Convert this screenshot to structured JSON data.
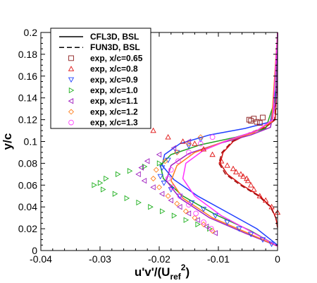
{
  "chart_data": {
    "type": "line",
    "title": "",
    "xlabel": "u'v'/(U",
    "xlabel_sub": "ref",
    "xlabel_sup": "2",
    "xlabel_close": ")",
    "ylabel": "y/c",
    "xlim": [
      -0.04,
      0
    ],
    "ylim": [
      0,
      0.2
    ],
    "x_ticks": [
      -0.04,
      -0.03,
      -0.02,
      -0.01,
      0
    ],
    "x_tick_labels": [
      "-0.04",
      "-0.03",
      "-0.02",
      "-0.01",
      "0"
    ],
    "y_ticks": [
      0,
      0.02,
      0.04,
      0.06,
      0.08,
      0.1,
      0.12,
      0.14,
      0.16,
      0.18,
      0.2
    ],
    "y_tick_labels": [
      "0",
      "0.02",
      "0.04",
      "0.06",
      "0.08",
      "0.1",
      "0.12",
      "0.14",
      "0.16",
      "0.18",
      "0.2"
    ],
    "grid": false,
    "legend_position": "top-left",
    "legend": [
      {
        "label": "CFL3D, BSL",
        "kind": "line",
        "dash": "solid",
        "color": "#000000"
      },
      {
        "label": "FUN3D, BSL",
        "kind": "line",
        "dash": "dashed",
        "color": "#000000"
      },
      {
        "label": "exp, x/c=0.65",
        "kind": "marker",
        "marker": "square",
        "color": "#8a1a1a"
      },
      {
        "label": "exp, x/c=0.8",
        "kind": "marker",
        "marker": "triangle-up",
        "color": "#e01010"
      },
      {
        "label": "exp, x/c=0.9",
        "kind": "marker",
        "marker": "triangle-down",
        "color": "#2040ff"
      },
      {
        "label": "exp, x/c=1.0",
        "kind": "marker",
        "marker": "triangle-right",
        "color": "#20b020"
      },
      {
        "label": "exp, x/c=1.1",
        "kind": "marker",
        "marker": "triangle-left",
        "color": "#a020c0"
      },
      {
        "label": "exp, x/c=1.2",
        "kind": "marker",
        "marker": "diamond",
        "color": "#ff8020"
      },
      {
        "label": "exp, x/c=1.3",
        "kind": "marker",
        "marker": "circle",
        "color": "#ff40ff"
      }
    ],
    "curves": [
      {
        "station": "0.8",
        "color": "#d01010",
        "dash": "solid",
        "x": [
          0,
          -0.0003,
          -0.0011,
          -0.003,
          -0.006,
          -0.0085,
          -0.0097,
          -0.0092,
          -0.0075,
          -0.0045,
          -0.002,
          -0.0004,
          -0.0001,
          0
        ],
        "y": [
          0.022,
          0.03,
          0.04,
          0.05,
          0.06,
          0.07,
          0.08,
          0.09,
          0.1,
          0.108,
          0.113,
          0.12,
          0.15,
          0.2
        ]
      },
      {
        "station": "0.8",
        "color": "#a01010",
        "dash": "dashed",
        "x": [
          0,
          -0.0003,
          -0.0012,
          -0.0032,
          -0.0063,
          -0.0088,
          -0.0099,
          -0.0094,
          -0.0077,
          -0.0047,
          -0.0021,
          -0.0005,
          -0.0001,
          0
        ],
        "y": [
          0.021,
          0.03,
          0.04,
          0.05,
          0.06,
          0.07,
          0.08,
          0.09,
          0.1,
          0.108,
          0.113,
          0.12,
          0.15,
          0.2
        ]
      },
      {
        "station": "0.9",
        "color": "#2040ff",
        "dash": "solid",
        "x": [
          0,
          -0.0035,
          -0.0085,
          -0.0135,
          -0.0175,
          -0.0195,
          -0.0191,
          -0.0165,
          -0.0115,
          -0.0055,
          -0.0012,
          -0.0002,
          0
        ],
        "y": [
          0.005,
          0.02,
          0.035,
          0.05,
          0.065,
          0.078,
          0.088,
          0.098,
          0.106,
          0.112,
          0.118,
          0.15,
          0.2
        ]
      },
      {
        "station": "1.0",
        "color": "#20a020",
        "dash": "solid",
        "x": [
          0,
          -0.0045,
          -0.0105,
          -0.016,
          -0.0193,
          -0.0198,
          -0.018,
          -0.013,
          -0.007,
          -0.002,
          -0.0003,
          0
        ],
        "y": [
          0.004,
          0.018,
          0.033,
          0.05,
          0.066,
          0.078,
          0.088,
          0.097,
          0.104,
          0.112,
          0.14,
          0.2
        ]
      },
      {
        "station": "1.1",
        "color": "#a020c0",
        "dash": "solid",
        "x": [
          0,
          -0.0055,
          -0.0115,
          -0.0165,
          -0.0188,
          -0.018,
          -0.015,
          -0.01,
          -0.0045,
          -0.0012,
          -0.0002,
          0
        ],
        "y": [
          0.004,
          0.016,
          0.03,
          0.048,
          0.064,
          0.078,
          0.089,
          0.098,
          0.106,
          0.113,
          0.14,
          0.2
        ]
      },
      {
        "station": "1.2",
        "color": "#ff8020",
        "dash": "solid",
        "x": [
          0,
          -0.005,
          -0.011,
          -0.016,
          -0.018,
          -0.017,
          -0.014,
          -0.009,
          -0.004,
          -0.001,
          0
        ],
        "y": [
          0.004,
          0.016,
          0.03,
          0.048,
          0.064,
          0.078,
          0.09,
          0.1,
          0.108,
          0.118,
          0.2
        ]
      },
      {
        "station": "1.3",
        "color": "#ff30ff",
        "dash": "solid",
        "x": [
          0,
          -0.004,
          -0.0095,
          -0.014,
          -0.016,
          -0.0155,
          -0.0125,
          -0.008,
          -0.0035,
          -0.0008,
          0
        ],
        "y": [
          0.004,
          0.016,
          0.032,
          0.05,
          0.066,
          0.08,
          0.092,
          0.102,
          0.11,
          0.12,
          0.2
        ]
      }
    ],
    "series": [
      {
        "name": "exp, x/c=0.65",
        "marker": "square",
        "color": "#8a1a1a",
        "x": [
          -0.003,
          -0.0035,
          -0.0045,
          -0.0048,
          -0.004,
          -0.0025
        ],
        "y": [
          0.117,
          0.118,
          0.119,
          0.12,
          0.121,
          0.122
        ]
      },
      {
        "name": "exp, x/c=0.8",
        "marker": "triangle-up",
        "color": "#e01010",
        "x": [
          -0.021,
          -0.0185,
          -0.016,
          -0.014,
          -0.0125,
          -0.011,
          -0.0095,
          -0.0085,
          -0.0075,
          -0.007,
          -0.0062,
          -0.0058,
          -0.0052,
          -0.005,
          -0.0045,
          -0.004,
          -0.003,
          -0.002,
          -0.001,
          0
        ],
        "y": [
          0.11,
          0.104,
          0.1,
          0.098,
          0.093,
          0.088,
          0.082,
          0.078,
          0.075,
          0.072,
          0.07,
          0.068,
          0.066,
          0.064,
          0.06,
          0.056,
          0.05,
          0.046,
          0.04,
          0.035
        ]
      },
      {
        "name": "exp, x/c=0.9",
        "marker": "triangle-down",
        "color": "#2040ff",
        "x": [
          -0.013,
          -0.015,
          -0.017,
          -0.0185,
          -0.0195,
          -0.0198,
          -0.0192,
          -0.018,
          -0.0165,
          -0.0145,
          -0.0125,
          -0.0105,
          -0.0085,
          -0.0065,
          -0.0045,
          -0.0025,
          -0.001
        ],
        "y": [
          0.102,
          0.096,
          0.09,
          0.083,
          0.076,
          0.068,
          0.062,
          0.056,
          0.05,
          0.044,
          0.038,
          0.032,
          0.026,
          0.02,
          0.015,
          0.01,
          0.006
        ]
      },
      {
        "name": "exp, x/c=1.0",
        "marker": "triangle-right",
        "color": "#20b020",
        "x": [
          -0.02,
          -0.0225,
          -0.025,
          -0.027,
          -0.029,
          -0.03,
          -0.031,
          -0.0295,
          -0.0275,
          -0.0255,
          -0.0235,
          -0.0215,
          -0.0195,
          -0.0175,
          -0.0155,
          -0.0135,
          -0.0115
        ],
        "y": [
          0.08,
          0.077,
          0.073,
          0.07,
          0.066,
          0.062,
          0.06,
          0.056,
          0.052,
          0.048,
          0.044,
          0.04,
          0.036,
          0.032,
          0.028,
          0.024,
          0.02
        ]
      },
      {
        "name": "exp, x/c=1.1",
        "marker": "triangle-left",
        "color": "#a020c0",
        "x": [
          -0.015,
          -0.0175,
          -0.02,
          -0.022,
          -0.023,
          -0.0235,
          -0.0225,
          -0.021,
          -0.0195,
          -0.018,
          -0.0165,
          -0.015,
          -0.0135,
          -0.012,
          -0.0105
        ],
        "y": [
          0.1,
          0.094,
          0.088,
          0.082,
          0.076,
          0.07,
          0.064,
          0.058,
          0.052,
          0.046,
          0.04,
          0.034,
          0.028,
          0.022,
          0.016
        ]
      },
      {
        "name": "exp, x/c=1.2",
        "marker": "diamond",
        "color": "#ff8020",
        "x": [
          -0.013,
          -0.015,
          -0.017,
          -0.019,
          -0.0205,
          -0.021,
          -0.02,
          -0.0185,
          -0.017,
          -0.0155,
          -0.014,
          -0.0125,
          -0.011
        ],
        "y": [
          0.104,
          0.098,
          0.09,
          0.082,
          0.074,
          0.066,
          0.058,
          0.05,
          0.043,
          0.036,
          0.03,
          0.024,
          0.018
        ]
      },
      {
        "name": "exp, x/c=1.3",
        "marker": "circle",
        "color": "#ff40ff",
        "x": [
          -0.011,
          -0.013,
          -0.015,
          -0.0168,
          -0.018,
          -0.0185,
          -0.0178,
          -0.0165,
          -0.015,
          -0.0138,
          -0.0125,
          -0.0112
        ],
        "y": [
          0.104,
          0.098,
          0.09,
          0.082,
          0.074,
          0.066,
          0.058,
          0.05,
          0.042,
          0.034,
          0.026,
          0.02
        ]
      }
    ]
  }
}
